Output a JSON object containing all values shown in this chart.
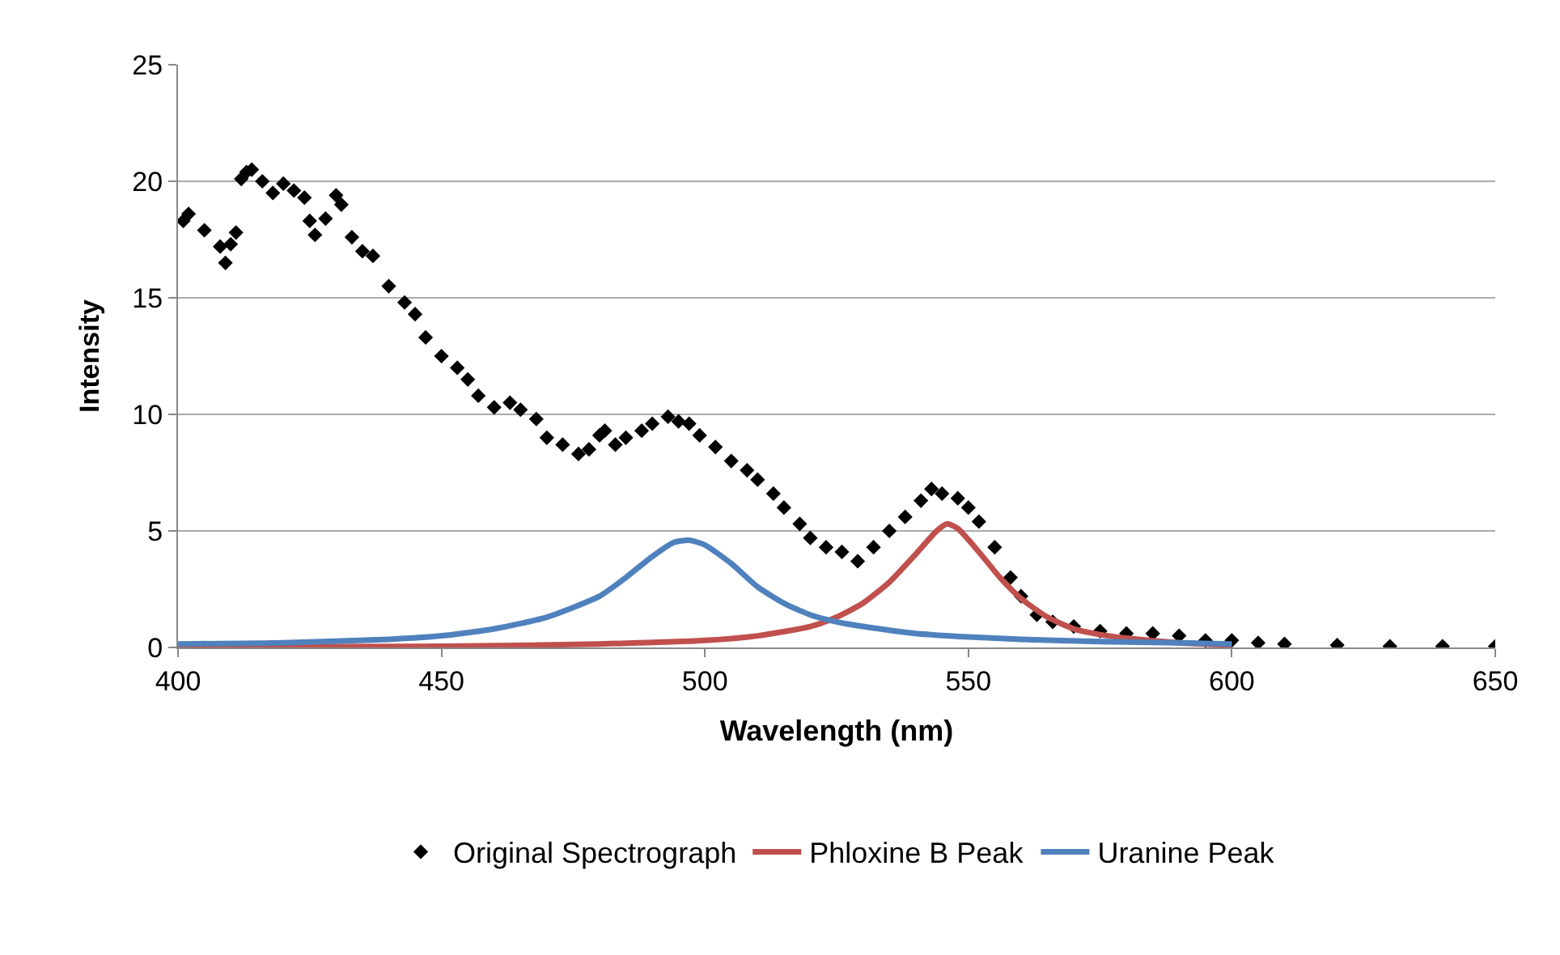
{
  "chart_data": {
    "type": "scatter",
    "xlabel": "Wavelength (nm)",
    "ylabel": "Intensity",
    "xlim": [
      400,
      650
    ],
    "xticks": [
      400,
      450,
      500,
      550,
      600,
      650
    ],
    "ylim": [
      0,
      25
    ],
    "yticks": [
      0,
      5,
      10,
      15,
      20,
      25
    ],
    "grid": "y",
    "legend": "bottom",
    "series": [
      {
        "name": "Original Spectrograph",
        "marker": "diamond",
        "color": "#000000",
        "x": [
          401,
          402,
          405,
          408,
          409,
          410,
          411,
          412,
          413,
          414,
          416,
          418,
          420,
          422,
          424,
          425,
          426,
          428,
          430,
          431,
          433,
          435,
          437,
          440,
          443,
          445,
          447,
          450,
          453,
          455,
          457,
          460,
          463,
          465,
          468,
          470,
          473,
          476,
          478,
          480,
          481,
          483,
          485,
          488,
          490,
          493,
          495,
          497,
          499,
          502,
          505,
          508,
          510,
          513,
          515,
          518,
          520,
          523,
          526,
          529,
          532,
          535,
          538,
          541,
          543,
          545,
          548,
          550,
          552,
          555,
          558,
          560,
          563,
          566,
          570,
          575,
          580,
          585,
          590,
          595,
          600,
          605,
          610,
          620,
          630,
          640,
          650
        ],
        "values": [
          18.3,
          18.6,
          17.9,
          17.2,
          16.5,
          17.3,
          17.8,
          20.1,
          20.4,
          20.5,
          20.0,
          19.5,
          19.9,
          19.6,
          19.3,
          18.3,
          17.7,
          18.4,
          19.4,
          19.0,
          17.6,
          17.0,
          16.8,
          15.5,
          14.8,
          14.3,
          13.3,
          12.5,
          12.0,
          11.5,
          10.8,
          10.3,
          10.5,
          10.2,
          9.8,
          9.0,
          8.7,
          8.3,
          8.5,
          9.1,
          9.3,
          8.7,
          9.0,
          9.3,
          9.6,
          9.9,
          9.7,
          9.6,
          9.1,
          8.6,
          8.0,
          7.6,
          7.2,
          6.6,
          6.0,
          5.3,
          4.7,
          4.3,
          4.1,
          3.7,
          4.3,
          5.0,
          5.6,
          6.3,
          6.8,
          6.6,
          6.4,
          6.0,
          5.4,
          4.3,
          3.0,
          2.2,
          1.4,
          1.1,
          0.9,
          0.7,
          0.6,
          0.6,
          0.5,
          0.3,
          0.3,
          0.2,
          0.15,
          0.1,
          0.05,
          0.05,
          0.05
        ]
      },
      {
        "name": "Phloxine B Peak",
        "type": "line",
        "marker": "none",
        "color": "#c0504d",
        "x": [
          400,
          450,
          480,
          500,
          510,
          520,
          525,
          530,
          535,
          540,
          544,
          546,
          548,
          552,
          556,
          560,
          565,
          570,
          575,
          580,
          590,
          600
        ],
        "values": [
          0.02,
          0.05,
          0.15,
          0.3,
          0.5,
          0.9,
          1.3,
          1.9,
          2.8,
          4.0,
          5.0,
          5.3,
          5.1,
          4.1,
          3.0,
          2.1,
          1.3,
          0.8,
          0.55,
          0.4,
          0.2,
          0.1
        ]
      },
      {
        "name": "Uranine Peak",
        "type": "line",
        "marker": "none",
        "color": "#4f81bd",
        "x": [
          400,
          420,
          440,
          450,
          460,
          470,
          480,
          485,
          490,
          494,
          497,
          500,
          505,
          510,
          515,
          520,
          525,
          530,
          540,
          550,
          560,
          575,
          590,
          600
        ],
        "values": [
          0.15,
          0.2,
          0.35,
          0.5,
          0.8,
          1.3,
          2.2,
          3.0,
          3.9,
          4.5,
          4.6,
          4.4,
          3.6,
          2.6,
          1.9,
          1.4,
          1.1,
          0.9,
          0.6,
          0.45,
          0.35,
          0.25,
          0.2,
          0.15
        ]
      }
    ]
  }
}
